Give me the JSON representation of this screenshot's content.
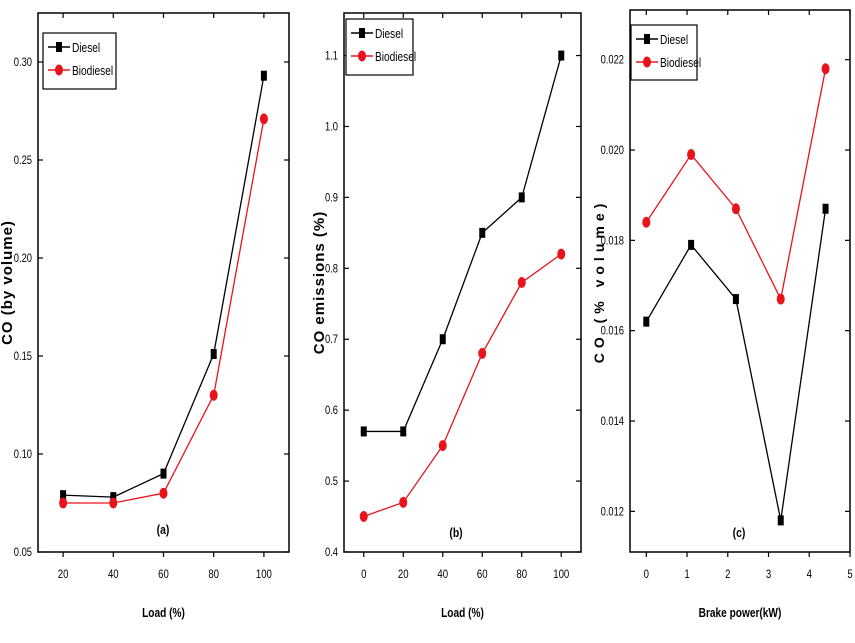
{
  "chart_data": [
    {
      "type": "line",
      "panel_label": "(a)",
      "xlabel": "Load (%)",
      "ylabel": "CO (by volume)",
      "x": [
        20,
        40,
        60,
        80,
        100
      ],
      "xticks": [
        20,
        40,
        60,
        80,
        100
      ],
      "xlim": [
        10,
        110
      ],
      "yticks": [
        "0.05",
        "0.10",
        "0.15",
        "0.20",
        "0.25",
        "0.30"
      ],
      "ylim": [
        0.05,
        0.325
      ],
      "legend_placement": "top-left",
      "series": [
        {
          "name": "Diesel",
          "color": "#000000",
          "marker": "square",
          "values": [
            0.079,
            0.078,
            0.09,
            0.151,
            0.293
          ]
        },
        {
          "name": "Biodiesel",
          "color": "#e8141c",
          "marker": "circle",
          "values": [
            0.075,
            0.075,
            0.08,
            0.13,
            0.271
          ]
        }
      ]
    },
    {
      "type": "line",
      "panel_label": "(b)",
      "xlabel": "Load (%)",
      "ylabel": "CO emissions (%)",
      "x": [
        0,
        20,
        40,
        60,
        80,
        100
      ],
      "xticks": [
        0,
        20,
        40,
        60,
        80,
        100
      ],
      "xlim": [
        -10,
        110
      ],
      "yticks": [
        "0.4",
        "0.5",
        "0.6",
        "0.7",
        "0.8",
        "0.9",
        "1.0",
        "1.1"
      ],
      "ylim": [
        0.4,
        1.16
      ],
      "legend_placement": "top-left",
      "series": [
        {
          "name": "Diesel",
          "color": "#000000",
          "marker": "square",
          "values": [
            0.57,
            0.57,
            0.7,
            0.85,
            0.9,
            1.1
          ]
        },
        {
          "name": "Biodiesel",
          "color": "#e8141c",
          "marker": "circle",
          "values": [
            0.45,
            0.47,
            0.55,
            0.68,
            0.78,
            0.82
          ]
        }
      ]
    },
    {
      "type": "line",
      "panel_label": "(c)",
      "xlabel": "Brake power(kW)",
      "ylabel": "CO (% volume)",
      "x": [
        0,
        1.1,
        2.2,
        3.3,
        4.4
      ],
      "xticks": [
        0,
        1,
        2,
        3,
        4,
        5
      ],
      "xlim": [
        -0.4,
        5
      ],
      "yticks": [
        "0.012",
        "0.014",
        "0.016",
        "0.018",
        "0.020",
        "0.022"
      ],
      "ylim": [
        0.0111,
        0.0231
      ],
      "legend_placement": "top-left",
      "series": [
        {
          "name": "Diesel",
          "color": "#000000",
          "marker": "square",
          "values": [
            0.0162,
            0.0179,
            0.0167,
            0.0118,
            0.0187
          ]
        },
        {
          "name": "Biodiesel",
          "color": "#e8141c",
          "marker": "circle",
          "values": [
            0.0184,
            0.0199,
            0.0187,
            0.0167,
            0.0218
          ]
        }
      ]
    }
  ]
}
